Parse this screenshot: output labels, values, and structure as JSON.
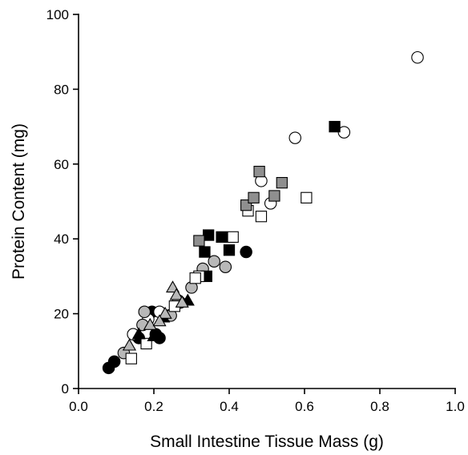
{
  "chart_data": {
    "type": "scatter",
    "title": "",
    "xlabel": "Small Intestine Tissue Mass (g)",
    "ylabel": "Protein Content (mg)",
    "xlim": [
      0.0,
      1.0
    ],
    "ylim": [
      0,
      100
    ],
    "xticks": [
      "0.0",
      "0.2",
      "0.4",
      "0.6",
      "0.8",
      "1.0"
    ],
    "yticks": [
      "0",
      "20",
      "40",
      "60",
      "80",
      "100"
    ],
    "grid": false,
    "legend": "none",
    "series": [
      {
        "marker": "circle",
        "fill": "#000000",
        "points": [
          [
            0.08,
            5.5
          ],
          [
            0.095,
            7.2
          ],
          [
            0.16,
            13.5
          ],
          [
            0.195,
            20.5
          ],
          [
            0.205,
            14.5
          ],
          [
            0.215,
            13.5
          ],
          [
            0.24,
            19.5
          ],
          [
            0.27,
            23
          ],
          [
            0.445,
            36.5
          ]
        ]
      },
      {
        "marker": "circle",
        "fill": "#ffffff",
        "points": [
          [
            0.145,
            14.5
          ],
          [
            0.185,
            18.5
          ],
          [
            0.215,
            20.5
          ],
          [
            0.485,
            55.5
          ],
          [
            0.51,
            49.5
          ],
          [
            0.575,
            67
          ],
          [
            0.705,
            68.5
          ],
          [
            0.9,
            88.5
          ]
        ]
      },
      {
        "marker": "circle",
        "fill": "#b8b8b8",
        "points": [
          [
            0.12,
            9.5
          ],
          [
            0.17,
            17
          ],
          [
            0.175,
            20.5
          ],
          [
            0.245,
            19.5
          ],
          [
            0.265,
            23.5
          ],
          [
            0.3,
            27
          ],
          [
            0.32,
            30
          ],
          [
            0.33,
            32
          ],
          [
            0.36,
            34
          ],
          [
            0.39,
            32.5
          ]
        ]
      },
      {
        "marker": "square",
        "fill": "#000000",
        "points": [
          [
            0.34,
            30
          ],
          [
            0.335,
            36.5
          ],
          [
            0.345,
            41
          ],
          [
            0.38,
            40.5
          ],
          [
            0.4,
            37
          ],
          [
            0.68,
            70
          ]
        ]
      },
      {
        "marker": "square",
        "fill": "#ffffff",
        "points": [
          [
            0.14,
            8
          ],
          [
            0.18,
            12
          ],
          [
            0.255,
            22
          ],
          [
            0.32,
            30
          ],
          [
            0.31,
            29.5
          ],
          [
            0.41,
            40.5
          ],
          [
            0.45,
            47.5
          ],
          [
            0.485,
            46
          ],
          [
            0.605,
            51
          ]
        ]
      },
      {
        "marker": "square",
        "fill": "#8f8f8f",
        "points": [
          [
            0.32,
            39.5
          ],
          [
            0.445,
            49
          ],
          [
            0.465,
            51
          ],
          [
            0.48,
            58
          ],
          [
            0.52,
            51.5
          ],
          [
            0.54,
            55
          ]
        ]
      },
      {
        "marker": "triangle",
        "fill": "#000000",
        "points": [
          [
            0.16,
            14.5
          ],
          [
            0.2,
            14
          ],
          [
            0.225,
            19
          ],
          [
            0.29,
            23.5
          ]
        ]
      },
      {
        "marker": "triangle",
        "fill": "#b8b8b8",
        "points": [
          [
            0.135,
            11.5
          ],
          [
            0.19,
            17
          ],
          [
            0.23,
            20
          ],
          [
            0.25,
            27
          ],
          [
            0.26,
            25
          ],
          [
            0.275,
            23
          ],
          [
            0.215,
            18
          ]
        ]
      }
    ]
  }
}
